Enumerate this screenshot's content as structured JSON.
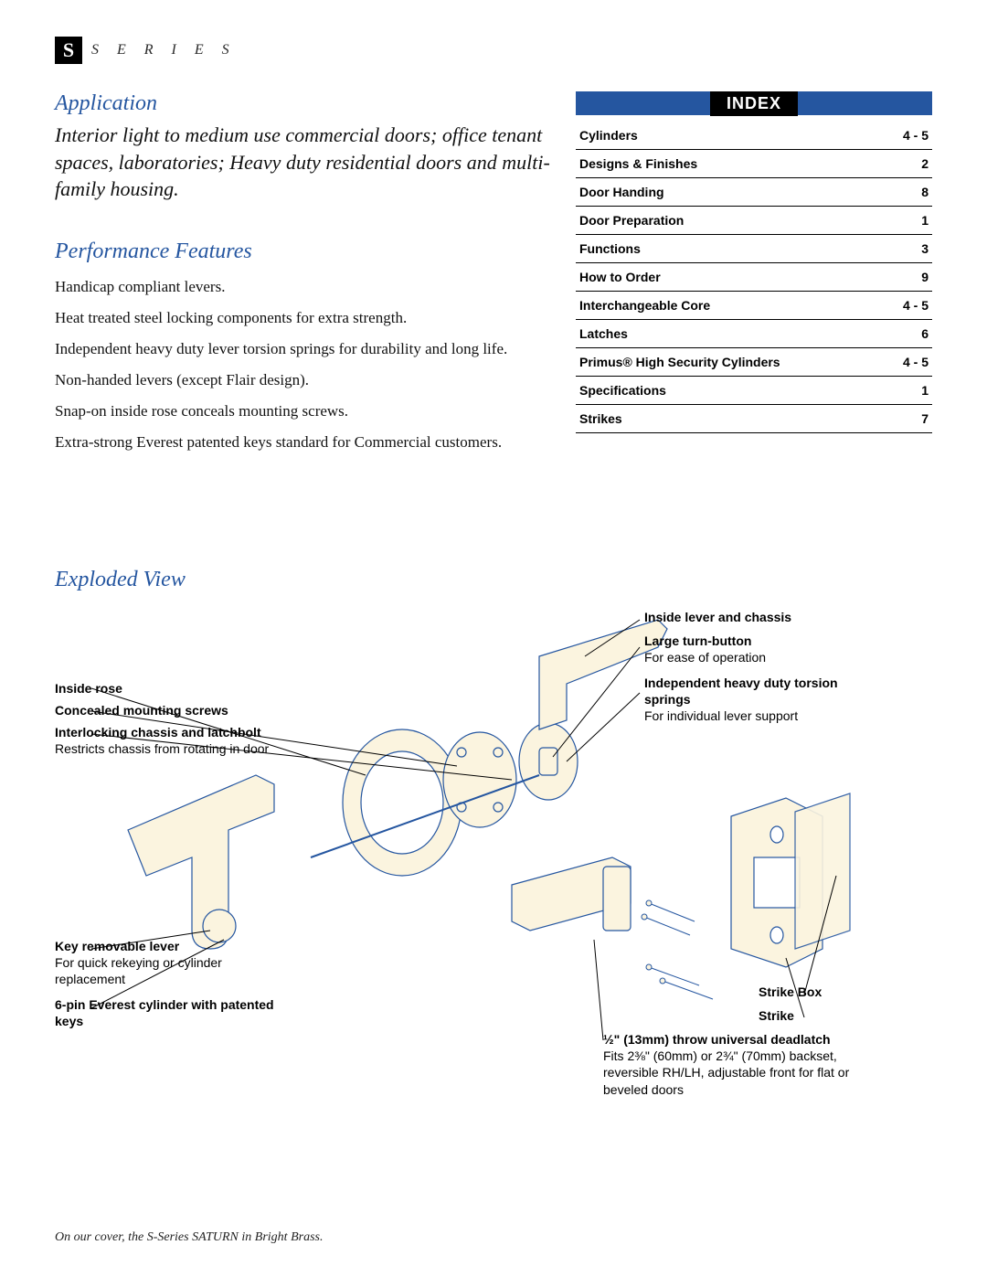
{
  "series": {
    "badge": "S",
    "label": "S E R I E S"
  },
  "application": {
    "title": "Application",
    "text": "Interior light to medium use commercial doors; office tenant spaces, laboratories; Heavy duty residential doors and multi-family housing."
  },
  "performance": {
    "title": "Performance Features",
    "items": [
      "Handicap compliant levers.",
      "Heat treated steel locking components for extra strength.",
      "Independent heavy duty lever torsion springs for durability and long life.",
      "Non-handed levers (except Flair design).",
      "Snap-on inside rose conceals mounting screws.",
      "Extra-strong Everest patented keys standard for Commercial customers."
    ]
  },
  "index": {
    "title": "INDEX",
    "rows": [
      {
        "label": "Cylinders",
        "page": "4 - 5"
      },
      {
        "label": "Designs & Finishes",
        "page": "2"
      },
      {
        "label": "Door Handing",
        "page": "8"
      },
      {
        "label": "Door Preparation",
        "page": "1"
      },
      {
        "label": "Functions",
        "page": "3"
      },
      {
        "label": "How to Order",
        "page": "9"
      },
      {
        "label": "Interchangeable Core",
        "page": "4 - 5"
      },
      {
        "label": "Latches",
        "page": "6"
      },
      {
        "label": "Primus® High Security Cylinders",
        "page": "4 - 5"
      },
      {
        "label": "Specifications",
        "page": "1"
      },
      {
        "label": "Strikes",
        "page": "7"
      }
    ]
  },
  "exploded": {
    "title": "Exploded View",
    "callouts": {
      "inside_rose": {
        "bold": "Inside rose"
      },
      "concealed": {
        "bold": "Concealed mounting screws"
      },
      "interlocking": {
        "bold": "Interlocking chassis and latchbolt",
        "text": "Restricts chassis from rotating in door"
      },
      "key_removable": {
        "bold": "Key removable lever",
        "text": "For quick rekeying or cylinder replacement"
      },
      "everest": {
        "bold": "6-pin Everest cylinder with patented keys"
      },
      "inside_lever": {
        "bold": "Inside lever and chassis"
      },
      "turn_button": {
        "bold": "Large turn-button",
        "text": "For ease of operation"
      },
      "torsion": {
        "bold": "Independent heavy duty torsion springs",
        "text": "For individual lever support"
      },
      "strike_box": {
        "bold": "Strike Box"
      },
      "strike": {
        "bold": "Strike"
      },
      "deadlatch": {
        "bold": "½\" (13mm) throw universal deadlatch",
        "text": "Fits 2⅜\" (60mm) or 2¾\" (70mm) backset, reversible RH/LH, adjustable front for flat or beveled doors"
      }
    }
  },
  "footer": "On our cover, the S-Series SATURN in Bright Brass.",
  "colors": {
    "accent_blue": "#2556a0",
    "diagram_fill": "#fbf4df",
    "diagram_stroke": "#2556a0"
  }
}
